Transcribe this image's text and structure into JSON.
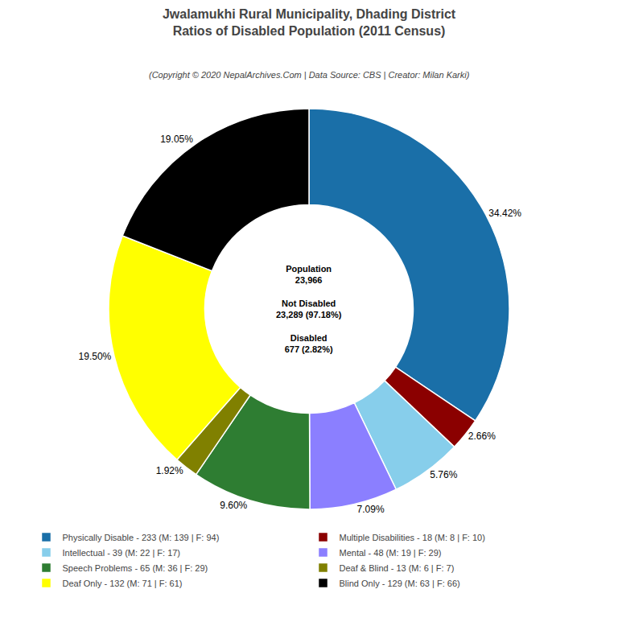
{
  "chart_data": {
    "type": "pie",
    "title": "Jwalamukhi Rural Municipality, Dhading District\nRatios of Disabled Population (2011 Census)",
    "subtitle": "(Copyright © 2020 NepalArchives.Com | Data Source: CBS | Creator: Milan Karki)",
    "categories": [
      "Physically Disable - 233 (M: 139 | F: 94)",
      "Multiple Disabilities - 18 (M: 8 | F: 10)",
      "Intellectual - 39 (M: 22 | F: 17)",
      "Mental - 48 (M: 19 | F: 29)",
      "Speech Problems - 65 (M: 36 | F: 29)",
      "Deaf & Blind - 13 (M: 6 | F: 7)",
      "Deaf Only - 132 (M: 71 | F: 61)",
      "Blind Only - 129 (M: 63 | F: 66)"
    ],
    "values": [
      34.42,
      2.66,
      5.76,
      7.09,
      9.6,
      1.92,
      19.5,
      19.05
    ],
    "value_labels": [
      "34.42%",
      "2.66%",
      "5.76%",
      "7.09%",
      "9.60%",
      "1.92%",
      "19.50%",
      "19.05%"
    ],
    "colors": [
      "#1a6fa8",
      "#8b0000",
      "#87ceeb",
      "#8b7fff",
      "#2e7d32",
      "#808000",
      "#ffff00",
      "#000000"
    ],
    "data_labels": true,
    "legend": "bottom",
    "annotations": [
      {
        "text": "Population\n23,966\n\nNot Disabled\n23,289 (97.18%)\n\nDisabled\n677 (2.82%)"
      }
    ]
  }
}
